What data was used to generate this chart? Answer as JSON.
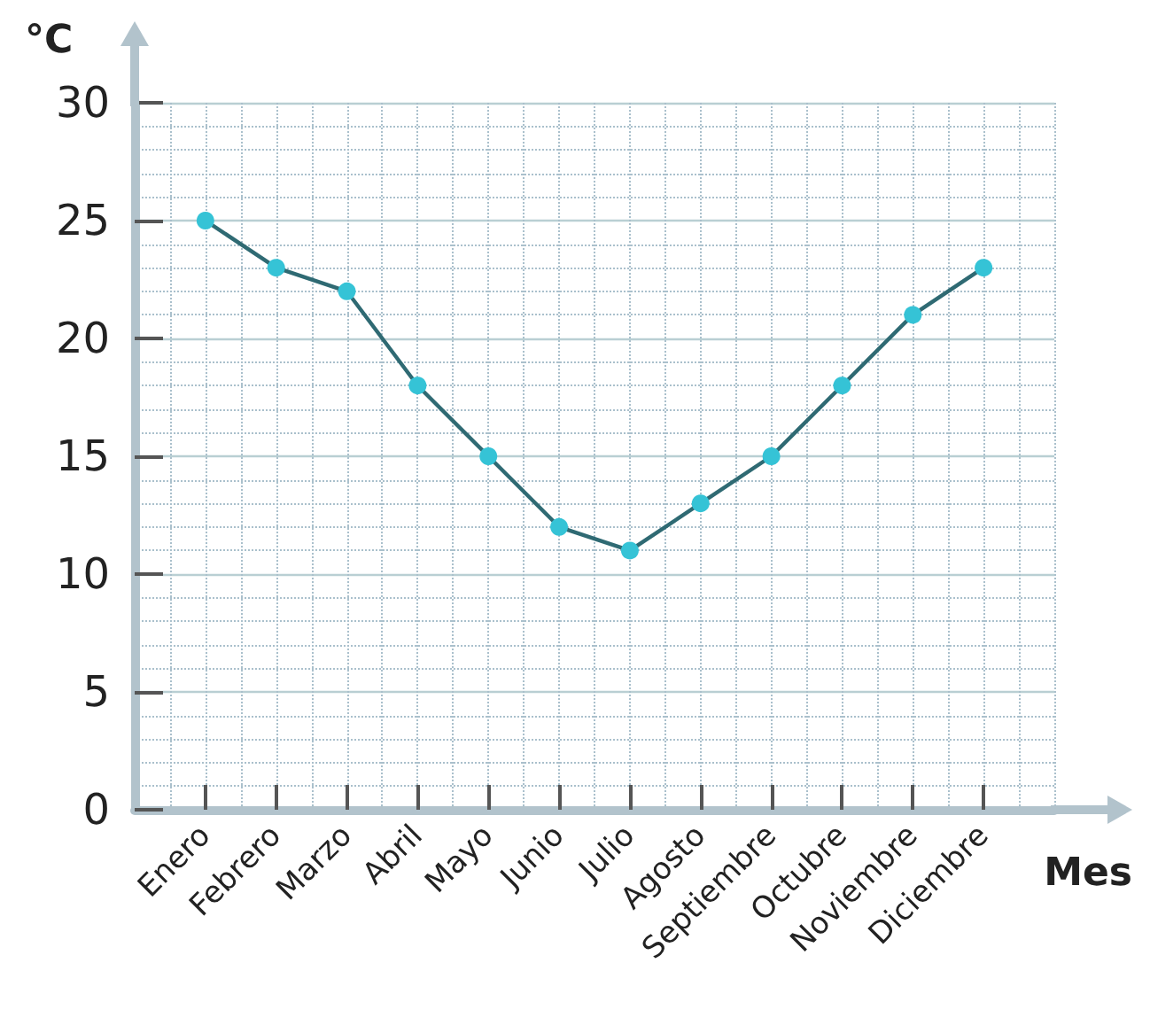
{
  "chart_data": {
    "type": "line",
    "xlabel": "Mes",
    "ylabel": "°C",
    "categories": [
      "Enero",
      "Febrero",
      "Marzo",
      "Abril",
      "Mayo",
      "Junio",
      "Julio",
      "Agosto",
      "Septiembre",
      "Octubre",
      "Noviembre",
      "Diciembre"
    ],
    "series": [
      {
        "color": "#2f6a73",
        "values": [
          25,
          23,
          22,
          18,
          15,
          12,
          11,
          13,
          15,
          18,
          21,
          23
        ]
      }
    ],
    "ylim": [
      0,
      30
    ],
    "yticks": [
      0,
      5,
      10,
      15,
      20,
      25,
      30
    ],
    "grid": true,
    "marker": "circle",
    "line_style": "solid"
  }
}
